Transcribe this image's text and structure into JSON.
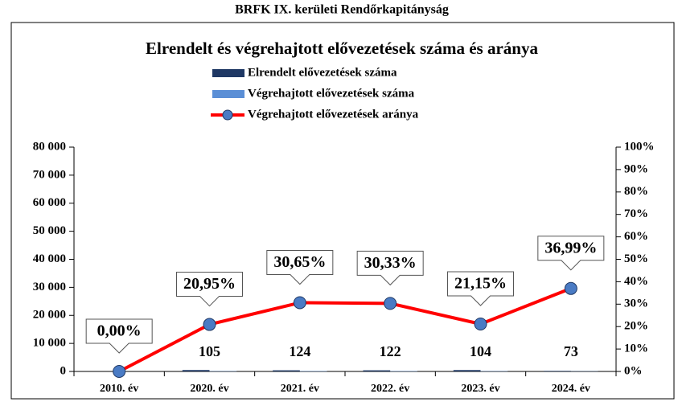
{
  "chart_data": {
    "type": "bar_line",
    "header": "BRFK IX. kerületi Rendőrkapitányság",
    "title": "Elrendelt és végrehajtott elővezetések száma és aránya",
    "categories": [
      "2010. év",
      "2020. év",
      "2021. év",
      "2022. év",
      "2023. év",
      "2024. év"
    ],
    "series": [
      {
        "name": "Elrendelt elővezetések száma",
        "type": "bar",
        "color": "#1f3864",
        "values": [
          null,
          501,
          405,
          402,
          492,
          197
        ]
      },
      {
        "name": "Végrehajtott elővezetések száma",
        "type": "bar",
        "color": "#5b8fd6",
        "values": [
          null,
          105,
          124,
          122,
          104,
          73
        ],
        "labels": true
      },
      {
        "name": "Végrehajtott elővezetések aránya",
        "type": "line",
        "axis": "y2",
        "color": "#ff0000",
        "marker_color": "#4a7bc4",
        "values": [
          0,
          20.95,
          30.65,
          30.33,
          21.15,
          36.99
        ],
        "value_labels": [
          "0,00%",
          "20,95%",
          "30,65%",
          "30,33%",
          "21,15%",
          "36,99%"
        ]
      }
    ],
    "ylim": [
      0,
      80000
    ],
    "yticks": [
      {
        "value": 0,
        "label": "0"
      },
      {
        "value": 10000,
        "label": "10 000"
      },
      {
        "value": 20000,
        "label": "20 000"
      },
      {
        "value": 30000,
        "label": "30 000"
      },
      {
        "value": 40000,
        "label": "40 000"
      },
      {
        "value": 50000,
        "label": "50 000"
      },
      {
        "value": 60000,
        "label": "60 000"
      },
      {
        "value": 70000,
        "label": "70 000"
      },
      {
        "value": 80000,
        "label": "80 000"
      }
    ],
    "y2lim": [
      0,
      100
    ],
    "y2ticks": [
      {
        "value": 0,
        "label": "0%"
      },
      {
        "value": 10,
        "label": "10%"
      },
      {
        "value": 20,
        "label": "20%"
      },
      {
        "value": 30,
        "label": "30%"
      },
      {
        "value": 40,
        "label": "40%"
      },
      {
        "value": 50,
        "label": "50%"
      },
      {
        "value": 60,
        "label": "60%"
      },
      {
        "value": 70,
        "label": "70%"
      },
      {
        "value": 80,
        "label": "80%"
      },
      {
        "value": 90,
        "label": "90%"
      },
      {
        "value": 100,
        "label": "100%"
      }
    ]
  }
}
